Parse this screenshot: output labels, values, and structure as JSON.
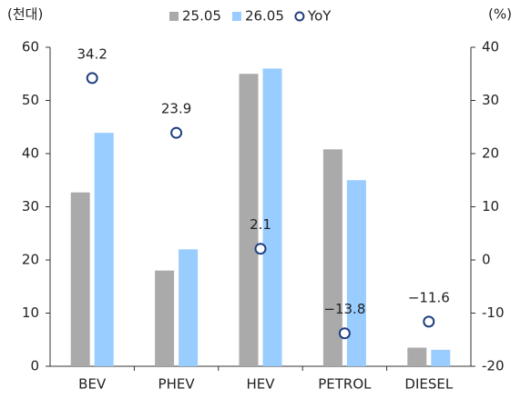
{
  "chart_data": {
    "type": "bar",
    "y_unit": "(천대)",
    "y2_unit": "(%)",
    "categories": [
      "BEV",
      "PHEV",
      "HEV",
      "PETROL",
      "DIESEL"
    ],
    "series": [
      {
        "name": "25.05",
        "color": "#aaaaaa",
        "values": [
          32.7,
          18,
          55,
          40.8,
          3.5
        ]
      },
      {
        "name": "26.05",
        "color": "#99ccff",
        "values": [
          43.9,
          22,
          56,
          35,
          3.1
        ]
      },
      {
        "name": "YoY",
        "type": "scatter",
        "axis": "y2",
        "color": "#1f3f7f",
        "values": [
          34.2,
          23.9,
          2.1,
          -13.8,
          -11.6
        ],
        "value_labels": [
          "34.2",
          "23.9",
          "2.1",
          "−13.8",
          "−11.6"
        ]
      }
    ],
    "ylim": [
      0,
      60
    ],
    "yticks": [
      0,
      10,
      20,
      30,
      40,
      50,
      60
    ],
    "y2lim": [
      -20,
      40
    ],
    "y2ticks": [
      -20,
      -10,
      0,
      10,
      20,
      30,
      40
    ]
  }
}
